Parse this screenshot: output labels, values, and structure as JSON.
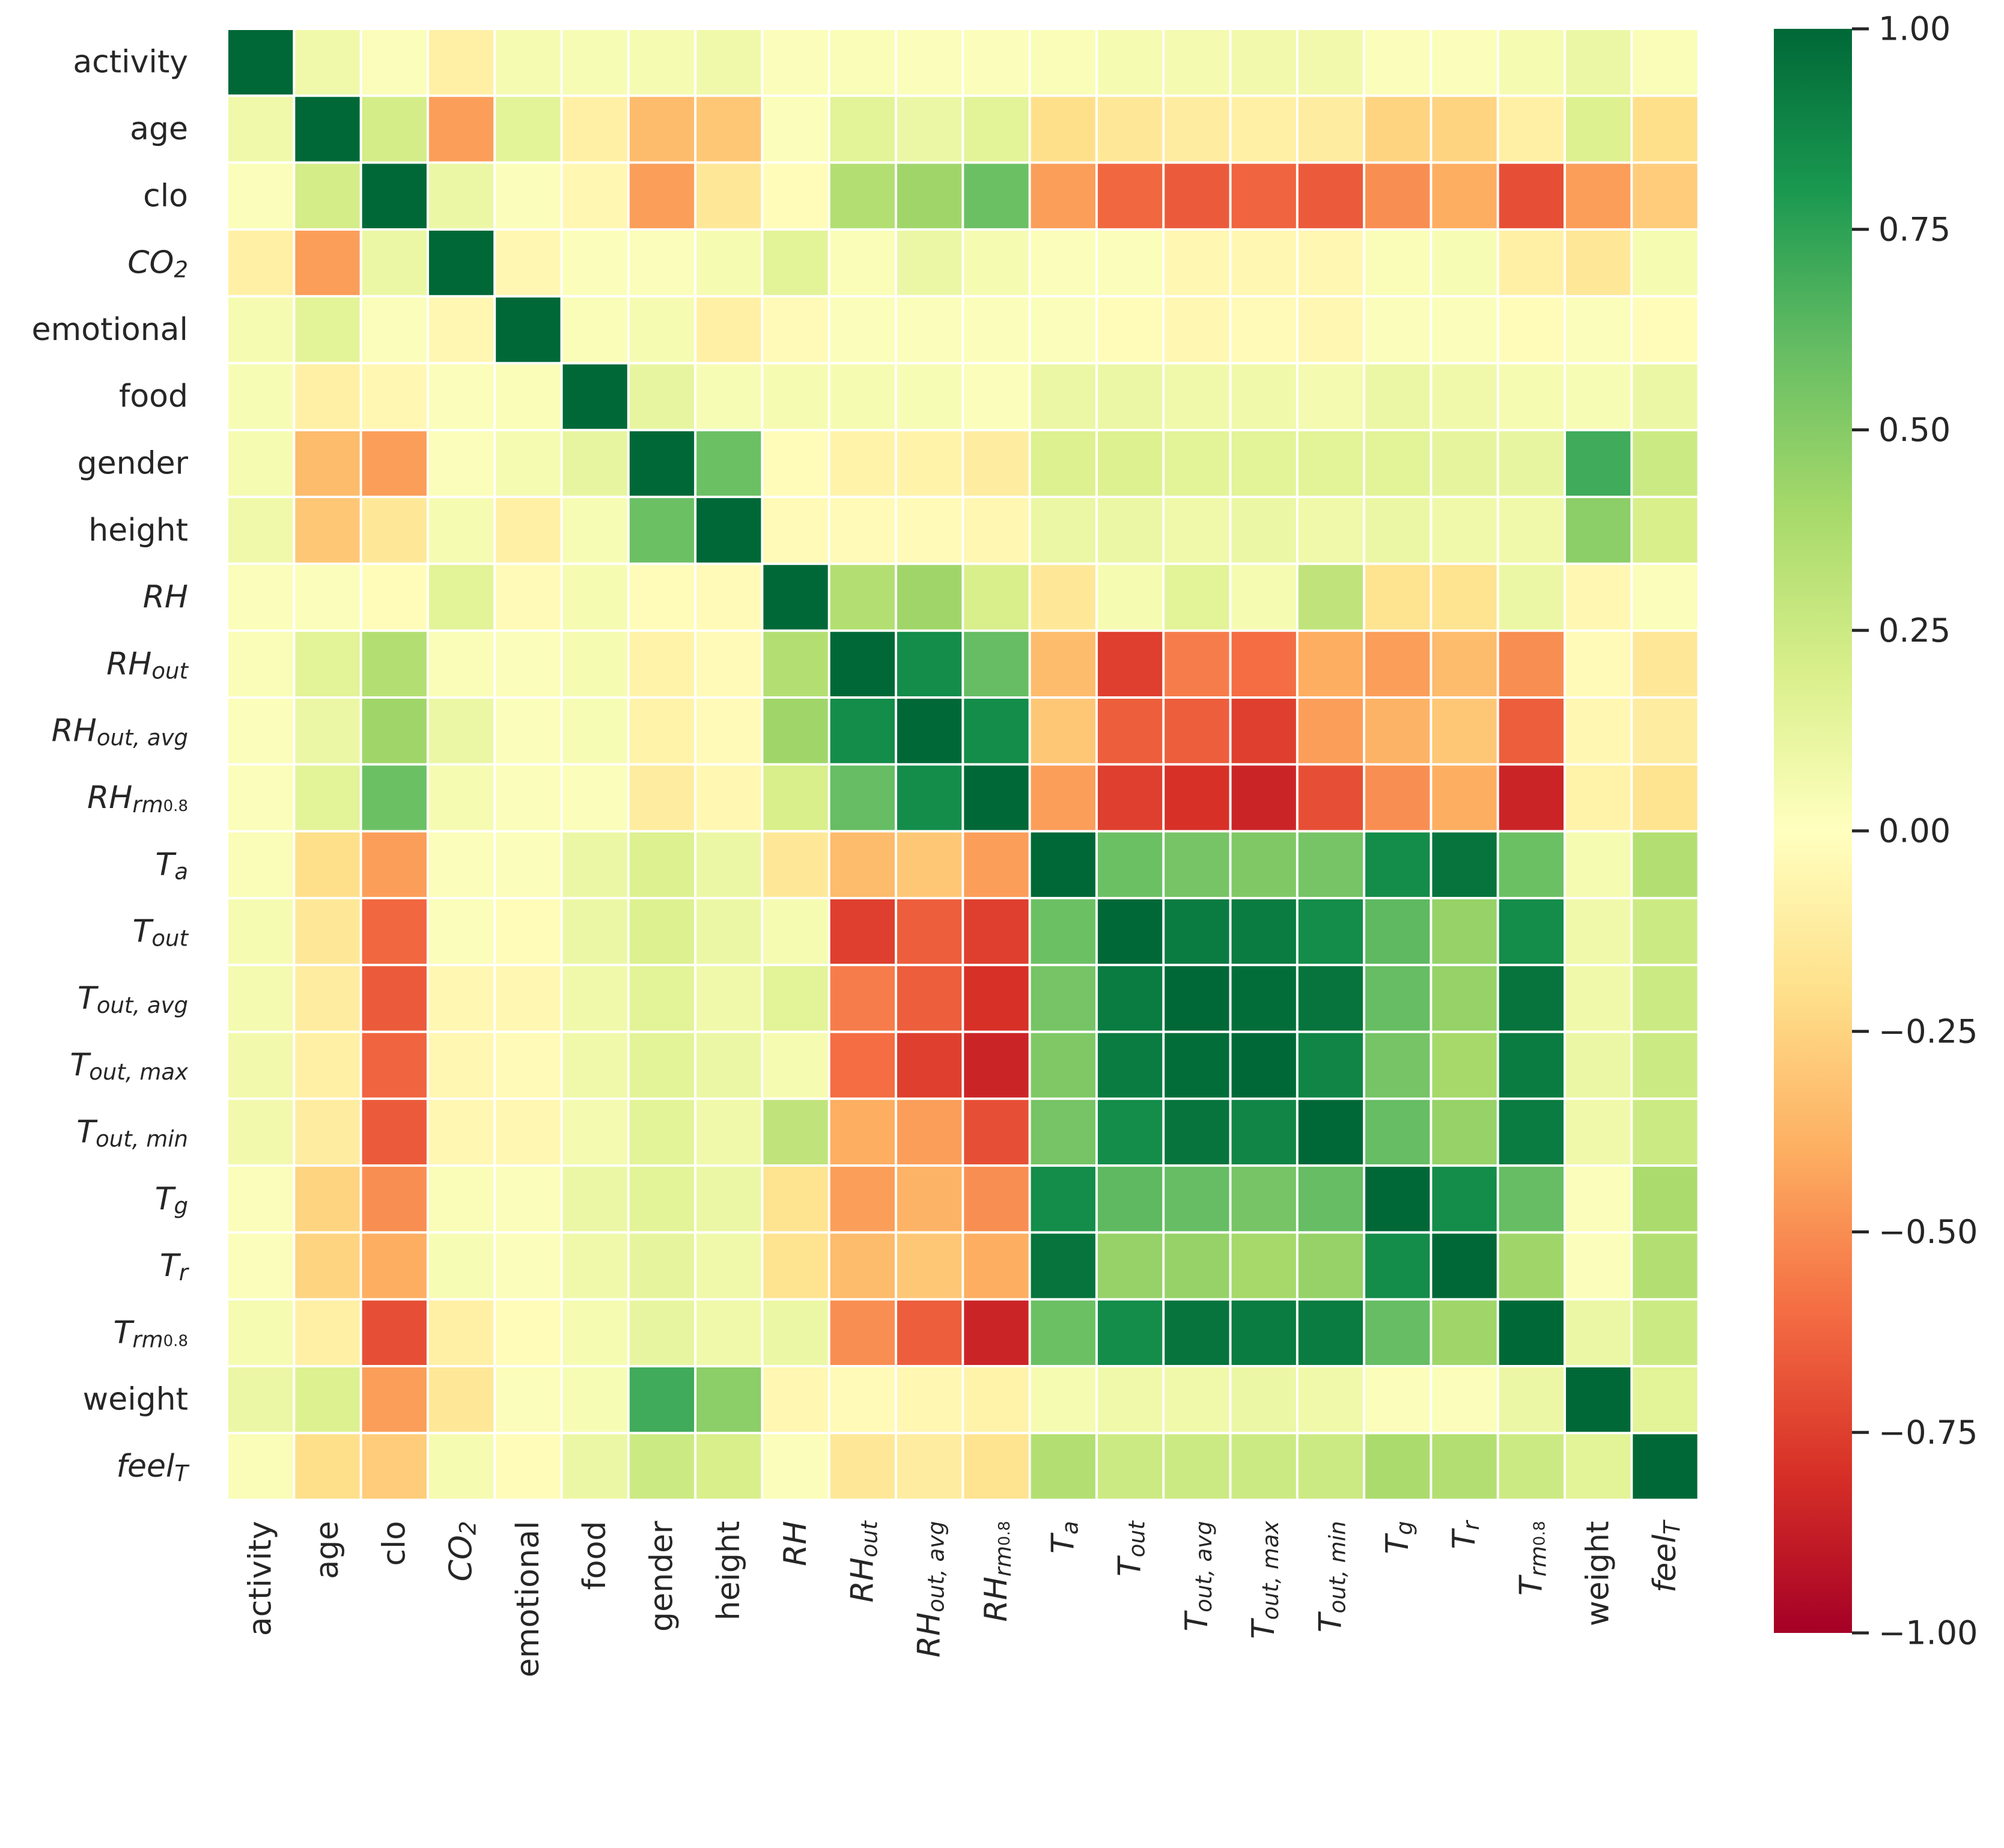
{
  "chart_data": {
    "type": "heatmap",
    "title": "",
    "variables": [
      {
        "base": "activity",
        "sub": "",
        "italic": false
      },
      {
        "base": "age",
        "sub": "",
        "italic": false
      },
      {
        "base": "clo",
        "sub": "",
        "italic": false
      },
      {
        "base": "CO",
        "sub": "2",
        "italic": true
      },
      {
        "base": "emotional",
        "sub": "",
        "italic": false
      },
      {
        "base": "food",
        "sub": "",
        "italic": false
      },
      {
        "base": "gender",
        "sub": "",
        "italic": false
      },
      {
        "base": "height",
        "sub": "",
        "italic": false
      },
      {
        "base": "RH",
        "sub": "",
        "italic": true
      },
      {
        "base": "RH",
        "sub": "out",
        "italic": true
      },
      {
        "base": "RH",
        "sub": "out, avg",
        "italic": true
      },
      {
        "base": "RH",
        "sub": "rm",
        "sub2": "0.8",
        "italic": true
      },
      {
        "base": "T",
        "sub": "a",
        "italic": true
      },
      {
        "base": "T",
        "sub": "out",
        "italic": true
      },
      {
        "base": "T",
        "sub": "out, avg",
        "italic": true
      },
      {
        "base": "T",
        "sub": "out, max",
        "italic": true
      },
      {
        "base": "T",
        "sub": "out, min",
        "italic": true
      },
      {
        "base": "T",
        "sub": "g",
        "italic": true
      },
      {
        "base": "T",
        "sub": "r",
        "italic": true
      },
      {
        "base": "T",
        "sub": "rm",
        "sub2": "0.8",
        "italic": true
      },
      {
        "base": "weight",
        "sub": "",
        "italic": false
      },
      {
        "base": "feel",
        "sub": "T",
        "italic": true
      }
    ],
    "values": [
      [
        1.0,
        0.08,
        0.02,
        -0.1,
        0.05,
        0.04,
        0.05,
        0.08,
        0.02,
        0.03,
        0.02,
        0.02,
        0.03,
        0.05,
        0.06,
        0.07,
        0.07,
        0.02,
        0.02,
        0.05,
        0.1,
        0.03
      ],
      [
        0.08,
        1.0,
        0.22,
        -0.45,
        0.15,
        -0.1,
        -0.35,
        -0.3,
        0.02,
        0.15,
        0.1,
        0.15,
        -0.2,
        -0.15,
        -0.12,
        -0.1,
        -0.12,
        -0.25,
        -0.25,
        -0.1,
        0.18,
        -0.2
      ],
      [
        0.02,
        0.22,
        1.0,
        0.1,
        0.02,
        -0.05,
        -0.45,
        -0.15,
        -0.02,
        0.35,
        0.42,
        0.58,
        -0.45,
        -0.62,
        -0.66,
        -0.63,
        -0.66,
        -0.5,
        -0.4,
        -0.7,
        -0.45,
        -0.28
      ],
      [
        -0.1,
        -0.45,
        0.1,
        1.0,
        -0.05,
        0.02,
        0.02,
        0.05,
        0.15,
        0.03,
        0.1,
        0.05,
        0.02,
        0.02,
        -0.05,
        -0.05,
        -0.05,
        0.03,
        0.04,
        -0.1,
        -0.15,
        0.05
      ],
      [
        0.05,
        0.15,
        0.02,
        -0.05,
        1.0,
        0.03,
        0.05,
        -0.1,
        -0.03,
        0.02,
        0.02,
        0.02,
        0.02,
        -0.02,
        -0.05,
        -0.03,
        -0.05,
        0.02,
        0.02,
        -0.02,
        0.02,
        -0.02
      ],
      [
        0.04,
        -0.1,
        -0.05,
        0.02,
        0.03,
        1.0,
        0.12,
        0.04,
        0.05,
        0.05,
        0.04,
        0.02,
        0.1,
        0.1,
        0.08,
        0.08,
        0.06,
        0.1,
        0.08,
        0.05,
        0.04,
        0.1
      ],
      [
        0.05,
        -0.35,
        -0.45,
        0.02,
        0.05,
        0.12,
        1.0,
        0.58,
        -0.02,
        -0.08,
        -0.08,
        -0.12,
        0.18,
        0.18,
        0.15,
        0.15,
        0.15,
        0.15,
        0.13,
        0.12,
        0.7,
        0.25
      ],
      [
        0.08,
        -0.3,
        -0.15,
        0.05,
        -0.1,
        0.04,
        0.58,
        1.0,
        -0.03,
        -0.03,
        -0.03,
        -0.05,
        0.1,
        0.1,
        0.08,
        0.1,
        0.08,
        0.1,
        0.08,
        0.08,
        0.48,
        0.2
      ],
      [
        0.02,
        0.02,
        -0.02,
        0.15,
        -0.03,
        0.05,
        -0.02,
        -0.03,
        1.0,
        0.35,
        0.42,
        0.2,
        -0.15,
        0.05,
        0.15,
        0.05,
        0.3,
        -0.18,
        -0.18,
        0.1,
        -0.05,
        0.02
      ],
      [
        0.03,
        0.15,
        0.35,
        0.03,
        0.02,
        0.05,
        -0.08,
        -0.03,
        0.35,
        1.0,
        0.85,
        0.6,
        -0.35,
        -0.75,
        -0.55,
        -0.6,
        -0.4,
        -0.45,
        -0.35,
        -0.5,
        -0.03,
        -0.15
      ],
      [
        0.02,
        0.1,
        0.42,
        0.1,
        0.02,
        0.04,
        -0.08,
        -0.03,
        0.42,
        0.85,
        1.0,
        0.85,
        -0.3,
        -0.65,
        -0.65,
        -0.75,
        -0.45,
        -0.38,
        -0.3,
        -0.65,
        -0.05,
        -0.12
      ],
      [
        0.02,
        0.15,
        0.58,
        0.05,
        0.02,
        0.02,
        -0.12,
        -0.05,
        0.2,
        0.6,
        0.85,
        1.0,
        -0.45,
        -0.75,
        -0.8,
        -0.85,
        -0.7,
        -0.5,
        -0.4,
        -0.85,
        -0.08,
        -0.18
      ],
      [
        0.03,
        -0.2,
        -0.45,
        0.02,
        0.02,
        0.1,
        0.18,
        0.1,
        -0.15,
        -0.35,
        -0.3,
        -0.45,
        1.0,
        0.58,
        0.55,
        0.52,
        0.55,
        0.85,
        0.95,
        0.58,
        0.05,
        0.35
      ],
      [
        0.05,
        -0.15,
        -0.62,
        0.02,
        -0.02,
        0.1,
        0.18,
        0.1,
        0.05,
        -0.75,
        -0.65,
        -0.75,
        0.58,
        1.0,
        0.92,
        0.92,
        0.85,
        0.62,
        0.45,
        0.85,
        0.08,
        0.25
      ],
      [
        0.06,
        -0.12,
        -0.66,
        -0.05,
        -0.05,
        0.08,
        0.15,
        0.08,
        0.15,
        -0.55,
        -0.65,
        -0.8,
        0.55,
        0.92,
        1.0,
        0.98,
        0.95,
        0.6,
        0.45,
        0.95,
        0.08,
        0.25
      ],
      [
        0.07,
        -0.1,
        -0.63,
        -0.05,
        -0.03,
        0.08,
        0.15,
        0.1,
        0.05,
        -0.6,
        -0.75,
        -0.85,
        0.52,
        0.92,
        0.98,
        1.0,
        0.88,
        0.55,
        0.4,
        0.92,
        0.1,
        0.25
      ],
      [
        0.07,
        -0.12,
        -0.66,
        -0.05,
        -0.05,
        0.06,
        0.15,
        0.08,
        0.3,
        -0.4,
        -0.45,
        -0.7,
        0.55,
        0.85,
        0.95,
        0.88,
        1.0,
        0.6,
        0.45,
        0.92,
        0.08,
        0.25
      ],
      [
        0.02,
        -0.25,
        -0.5,
        0.03,
        0.02,
        0.1,
        0.15,
        0.1,
        -0.18,
        -0.45,
        -0.38,
        -0.5,
        0.85,
        0.62,
        0.6,
        0.55,
        0.6,
        1.0,
        0.85,
        0.6,
        0.02,
        0.38
      ],
      [
        0.02,
        -0.25,
        -0.4,
        0.04,
        0.02,
        0.08,
        0.13,
        0.08,
        -0.18,
        -0.35,
        -0.3,
        -0.4,
        0.95,
        0.45,
        0.45,
        0.4,
        0.45,
        0.85,
        1.0,
        0.42,
        0.02,
        0.35
      ],
      [
        0.05,
        -0.1,
        -0.7,
        -0.1,
        -0.02,
        0.05,
        0.12,
        0.08,
        0.1,
        -0.5,
        -0.65,
        -0.85,
        0.58,
        0.85,
        0.95,
        0.92,
        0.92,
        0.6,
        0.42,
        1.0,
        0.1,
        0.25
      ],
      [
        0.1,
        0.18,
        -0.45,
        -0.15,
        0.02,
        0.04,
        0.7,
        0.48,
        -0.05,
        -0.03,
        -0.05,
        -0.08,
        0.05,
        0.08,
        0.08,
        0.1,
        0.08,
        0.02,
        0.02,
        0.1,
        1.0,
        0.15
      ],
      [
        0.03,
        -0.2,
        -0.28,
        0.05,
        -0.02,
        0.1,
        0.25,
        0.2,
        0.02,
        -0.15,
        -0.12,
        -0.18,
        0.35,
        0.25,
        0.25,
        0.25,
        0.25,
        0.38,
        0.35,
        0.25,
        0.15,
        1.0
      ]
    ],
    "colorbar": {
      "min": -1.0,
      "max": 1.0,
      "ticks": [
        1.0,
        0.75,
        0.5,
        0.25,
        0.0,
        -0.25,
        -0.5,
        -0.75,
        -1.0
      ],
      "tick_labels": [
        "1.00",
        "0.75",
        "0.50",
        "0.25",
        "0.00",
        "−0.25",
        "−0.50",
        "−0.75",
        "−1.00"
      ],
      "colormap": "RdYlGn",
      "stops": [
        "#a50026",
        "#d73027",
        "#f46d43",
        "#fdae61",
        "#fee08b",
        "#ffffbf",
        "#d9ef8b",
        "#a6d96a",
        "#66bd63",
        "#1a9850",
        "#006837"
      ]
    },
    "grid_line_color": "#ffffff",
    "xlabel": "",
    "ylabel": ""
  }
}
